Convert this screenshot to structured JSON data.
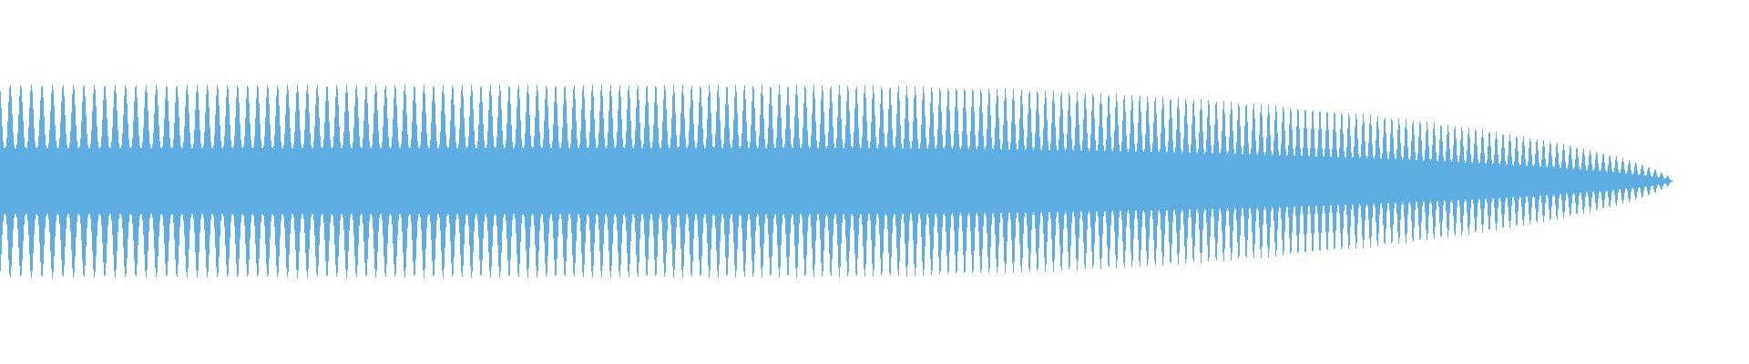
{
  "chart_data": {
    "type": "area",
    "description_kind": "audio-waveform",
    "color": "#5dade2",
    "background": "#ffffff",
    "grid": false,
    "legend": "none",
    "series": [
      {
        "values": []
      }
    ]
  }
}
